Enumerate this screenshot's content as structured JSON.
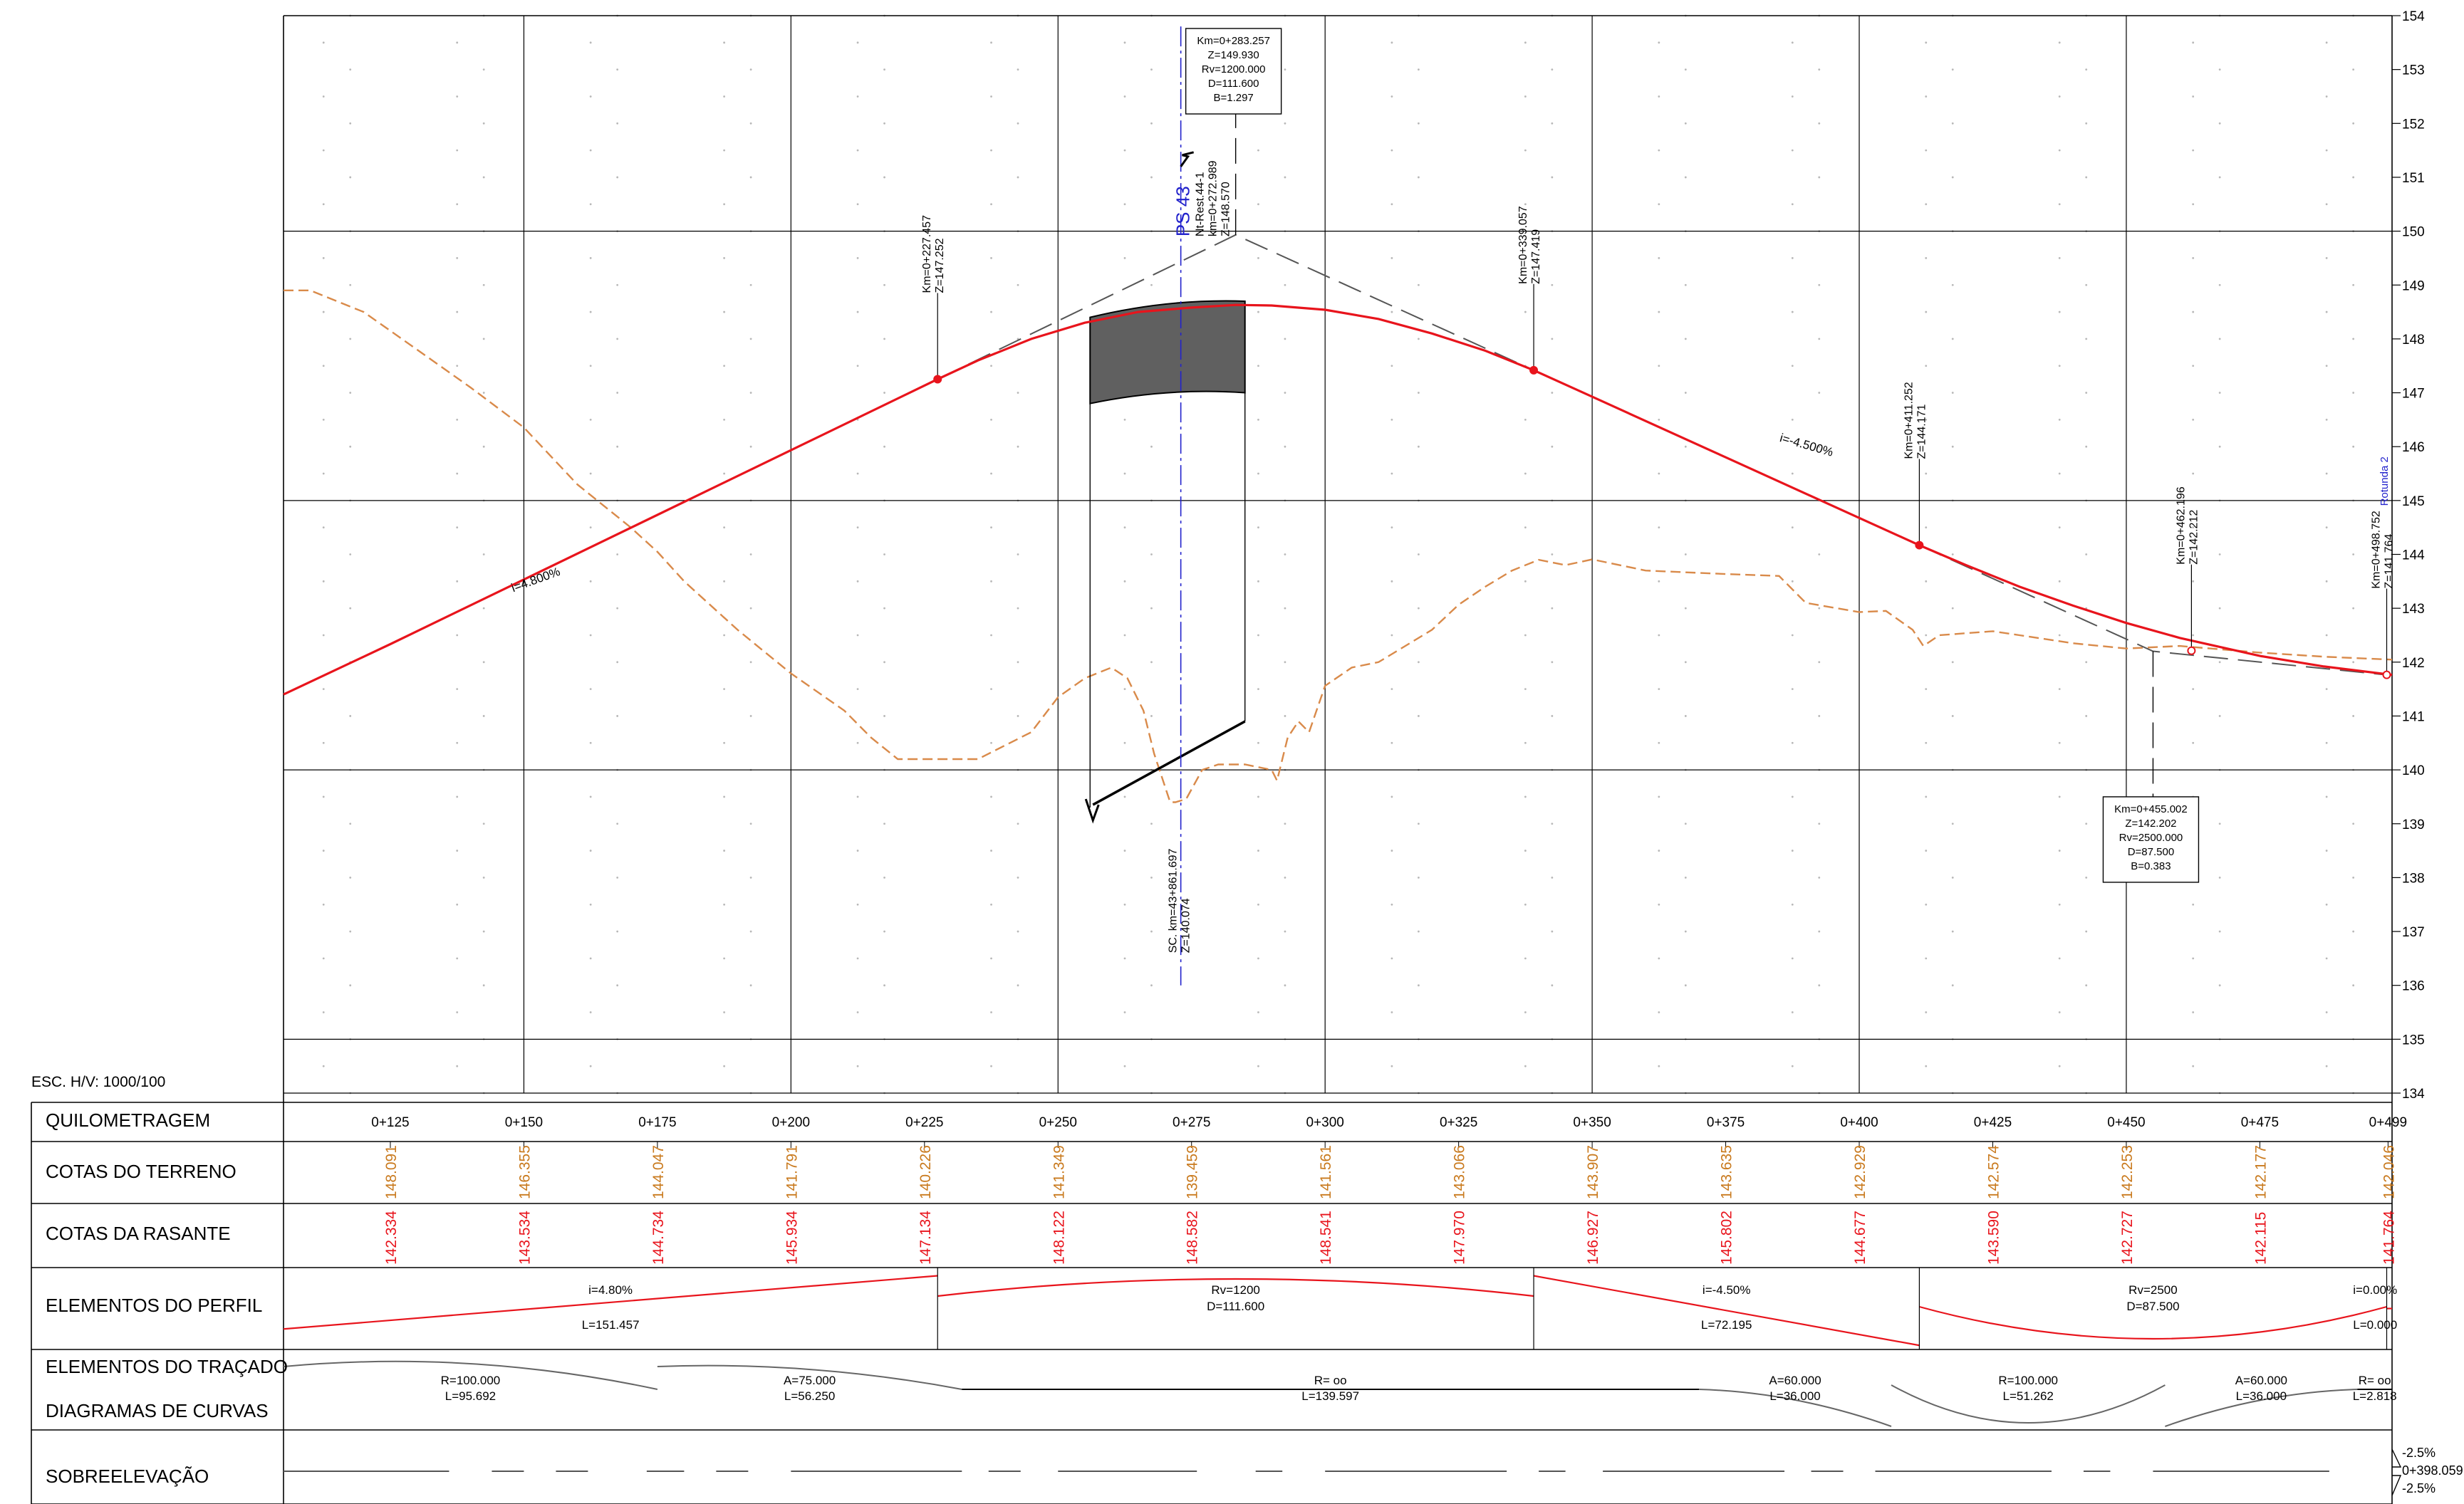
{
  "scale_note": "ESC. H/V: 1000/100",
  "rows": [
    {
      "key": "quilometragem",
      "label": "QUILOMETRAGEM"
    },
    {
      "key": "terreno",
      "label": "COTAS DO TERRENO"
    },
    {
      "key": "rasante",
      "label": "COTAS DA RASANTE"
    },
    {
      "key": "perfil",
      "label": "ELEMENTOS DO PERFIL"
    },
    {
      "key": "tracado",
      "label": "ELEMENTOS DO TRAÇADO"
    },
    {
      "key": "diagramas",
      "label": "DIAGRAMAS DE CURVAS"
    },
    {
      "key": "sobreelevacao",
      "label": "SOBREELEVAÇÃO"
    }
  ],
  "colors": {
    "grade_line": "#e8141c",
    "terrain_line": "#d98a4a",
    "terrain_value": "#c97a1e",
    "grade_value": "#e8141c",
    "axis_blue": "#2222cc",
    "structure_fill": "#606060",
    "grid": "#000000",
    "dot_grid": "#b8b8b8",
    "tangent": "#555555"
  },
  "chart_data": {
    "type": "line",
    "x_unit": "chainage (m)",
    "y_unit": "elevation (m)",
    "xlim": [
      105,
      499.752
    ],
    "ylim": [
      134,
      154
    ],
    "y_ticks": [
      134,
      135,
      136,
      137,
      138,
      139,
      140,
      141,
      142,
      143,
      144,
      145,
      146,
      147,
      148,
      149,
      150,
      151,
      152,
      153,
      154
    ],
    "stations": [
      {
        "x": 125,
        "label": "0+125",
        "terrain": "148.091",
        "grade": "142.334"
      },
      {
        "x": 150,
        "label": "0+150",
        "terrain": "146.355",
        "grade": "143.534"
      },
      {
        "x": 175,
        "label": "0+175",
        "terrain": "144.047",
        "grade": "144.734"
      },
      {
        "x": 200,
        "label": "0+200",
        "terrain": "141.791",
        "grade": "145.934"
      },
      {
        "x": 225,
        "label": "0+225",
        "terrain": "140.226",
        "grade": "147.134"
      },
      {
        "x": 250,
        "label": "0+250",
        "terrain": "141.349",
        "grade": "148.122"
      },
      {
        "x": 275,
        "label": "0+275",
        "terrain": "139.459",
        "grade": "148.582"
      },
      {
        "x": 300,
        "label": "0+300",
        "terrain": "141.561",
        "grade": "148.541"
      },
      {
        "x": 325,
        "label": "0+325",
        "terrain": "143.066",
        "grade": "147.970"
      },
      {
        "x": 350,
        "label": "0+350",
        "terrain": "143.907",
        "grade": "146.927"
      },
      {
        "x": 375,
        "label": "0+375",
        "terrain": "143.635",
        "grade": "145.802"
      },
      {
        "x": 400,
        "label": "0+400",
        "terrain": "142.929",
        "grade": "144.677"
      },
      {
        "x": 425,
        "label": "0+425",
        "terrain": "142.574",
        "grade": "143.590"
      },
      {
        "x": 450,
        "label": "0+450",
        "terrain": "142.253",
        "grade": "142.727"
      },
      {
        "x": 475,
        "label": "0+475",
        "terrain": "142.177",
        "grade": "142.115"
      },
      {
        "x": 499,
        "label": "0+499",
        "terrain": "142.046",
        "grade": "141.764"
      }
    ],
    "series": [
      {
        "role": "grade",
        "x": [
          105,
          125,
          150,
          175,
          200,
          227.457,
          235,
          245,
          255,
          265,
          275,
          283.257,
          290,
          300,
          310,
          320,
          330,
          339.057,
          350,
          375,
          400,
          411.252,
          420,
          430,
          440,
          450,
          460,
          475,
          487,
          499.752
        ],
        "y": [
          141.4,
          142.334,
          143.534,
          144.734,
          145.934,
          147.252,
          147.6,
          148.0,
          148.3,
          148.5,
          148.582,
          148.63,
          148.62,
          148.541,
          148.37,
          148.1,
          147.78,
          147.419,
          146.927,
          145.802,
          144.677,
          144.171,
          143.8,
          143.4,
          143.05,
          142.727,
          142.45,
          142.115,
          141.92,
          141.764
        ]
      },
      {
        "role": "terrain",
        "x": [
          105,
          110,
          120,
          130,
          140,
          150,
          160,
          170,
          175,
          180,
          190,
          200,
          210,
          215,
          220,
          227,
          235,
          245,
          250,
          255,
          260,
          263,
          266,
          268,
          270,
          271,
          272,
          274,
          277,
          280,
          285,
          290,
          291,
          293,
          295,
          297,
          300,
          305,
          310,
          320,
          325,
          330,
          335,
          340,
          345,
          350,
          360,
          375,
          385,
          390,
          400,
          405,
          410,
          412,
          415,
          425,
          430,
          440,
          450,
          460,
          475,
          487,
          499.752
        ],
        "y": [
          148.9,
          148.9,
          148.5,
          147.8,
          147.1,
          146.355,
          145.3,
          144.5,
          144.047,
          143.5,
          142.6,
          141.791,
          141.1,
          140.6,
          140.2,
          140.2,
          140.2,
          140.7,
          141.349,
          141.7,
          141.9,
          141.7,
          141.1,
          140.3,
          139.7,
          139.4,
          139.4,
          139.459,
          140.0,
          140.1,
          140.1,
          140.0,
          139.8,
          140.6,
          140.9,
          140.7,
          141.561,
          141.9,
          142.0,
          142.6,
          143.066,
          143.4,
          143.7,
          143.9,
          143.8,
          143.907,
          143.7,
          143.635,
          143.6,
          143.1,
          142.929,
          142.95,
          142.6,
          142.3,
          142.5,
          142.574,
          142.5,
          142.35,
          142.253,
          142.3,
          142.177,
          142.1,
          142.046
        ]
      }
    ],
    "tangents": [
      {
        "x": [
          227.457,
          283.257,
          339.057
        ],
        "y": [
          147.252,
          149.93,
          147.419
        ]
      },
      {
        "x": [
          411.252,
          455.002,
          498.752
        ],
        "y": [
          144.171,
          142.202,
          141.764
        ]
      }
    ],
    "grade_labels": [
      {
        "x": 148,
        "y": 143.3,
        "text": "i=4.800%",
        "angle": -20
      },
      {
        "x": 385,
        "y": 146.1,
        "text": "i=-4.500%",
        "angle": 16
      }
    ],
    "point_markers": [
      {
        "x": 227.457,
        "y": 147.252,
        "lines": [
          "Km=0+227.457",
          "Z=147.252"
        ]
      },
      {
        "x": 339.057,
        "y": 147.419,
        "lines": [
          "Km=0+339.057",
          "Z=147.419"
        ]
      },
      {
        "x": 411.252,
        "y": 144.171,
        "lines": [
          "Km=0+411.252",
          "Z=144.171"
        ]
      },
      {
        "x": 462.196,
        "y": 142.212,
        "lines": [
          "Km=0+462.196",
          "Z=142.212"
        ]
      },
      {
        "x": 498.752,
        "y": 141.764,
        "lines": [
          "Km=0+498.752",
          "Z=141.764"
        ]
      }
    ],
    "vertical_curves": [
      {
        "x": 283.257,
        "y": 149.93,
        "lines": [
          "Km=0+283.257",
          "Z=149.930",
          "Rv=1200.000",
          "D=111.600",
          "B=1.297"
        ]
      },
      {
        "x": 455.002,
        "y": 142.202,
        "lines": [
          "Km=0+455.002",
          "Z=142.202",
          "Rv=2500.000",
          "D=87.500",
          "B=0.383"
        ]
      }
    ],
    "structure": {
      "x_start": 256,
      "x_end": 285,
      "deck_top": [
        148.4,
        148.7
      ],
      "deck_bottom": [
        146.8,
        147.0
      ],
      "footing": [
        139.3,
        140.9
      ],
      "axis_x": 272.989,
      "axis_top": 153.8,
      "axis_bottom": 136.0,
      "name": "PS 43",
      "axis_lines": [
        "Nt-Rest.44-1",
        "km=0+272.989",
        "Z=148.570"
      ],
      "sc_lines": [
        "SC. km=43+861.697",
        "Z=140.074"
      ]
    },
    "side_label": "Rotunda 2",
    "perfil_elements": [
      {
        "x1": 105,
        "x2": 227.457,
        "kind": "line",
        "y_from": 0.75,
        "y_to": 0.1,
        "top": "i=4.80%",
        "bottom": "L=151.457"
      },
      {
        "x1": 227.457,
        "x2": 339.057,
        "kind": "crest",
        "top": "Rv=1200",
        "bottom": "D=111.600"
      },
      {
        "x1": 339.057,
        "x2": 411.252,
        "kind": "line",
        "y_from": 0.1,
        "y_to": 0.95,
        "top": "i=-4.50%",
        "bottom": "L=72.195"
      },
      {
        "x1": 411.252,
        "x2": 498.752,
        "kind": "sag",
        "top": "Rv=2500",
        "bottom": "D=87.500"
      },
      {
        "x1": 498.752,
        "x2": 499.752,
        "kind": "line",
        "y_from": 0.5,
        "y_to": 0.5,
        "top": "i=0.00%",
        "bottom": "L=0.000"
      }
    ],
    "tracado_elements": [
      {
        "x1": 105,
        "x2": 175,
        "kind": "curve_up",
        "top": "R=100.000",
        "bottom": "L=95.692"
      },
      {
        "x1": 175,
        "x2": 232,
        "kind": "spiral_down",
        "top": "A=75.000",
        "bottom": "L=56.250"
      },
      {
        "x1": 232,
        "x2": 370,
        "kind": "straight",
        "top": "R= oo",
        "bottom": "L=139.597"
      },
      {
        "x1": 370,
        "x2": 406,
        "kind": "spiral_to_down",
        "top": "A=60.000",
        "bottom": "L=36.000"
      },
      {
        "x1": 406,
        "x2": 457.262,
        "kind": "curve_down",
        "top": "R=100.000",
        "bottom": "L=51.262"
      },
      {
        "x1": 457.262,
        "x2": 493.262,
        "kind": "spiral_from_down",
        "top": "A=60.000",
        "bottom": "L=36.000"
      },
      {
        "x1": 493.262,
        "x2": 499.752,
        "kind": "straight_tail",
        "top": "R= oo",
        "bottom": "L=2.818"
      }
    ],
    "superelevation": {
      "dash_segments": [
        [
          105,
          136
        ],
        [
          144,
          150
        ],
        [
          156,
          162
        ],
        [
          173,
          180
        ],
        [
          186,
          192
        ],
        [
          200,
          232
        ],
        [
          237,
          243
        ],
        [
          250,
          276
        ],
        [
          287,
          292
        ],
        [
          300,
          334
        ],
        [
          340,
          345
        ],
        [
          352,
          386
        ],
        [
          391,
          397
        ],
        [
          403,
          436
        ],
        [
          442,
          447
        ],
        [
          455,
          488
        ]
      ],
      "labels": [
        "-2.5%",
        "0+398.059",
        "-2.5%"
      ]
    }
  }
}
